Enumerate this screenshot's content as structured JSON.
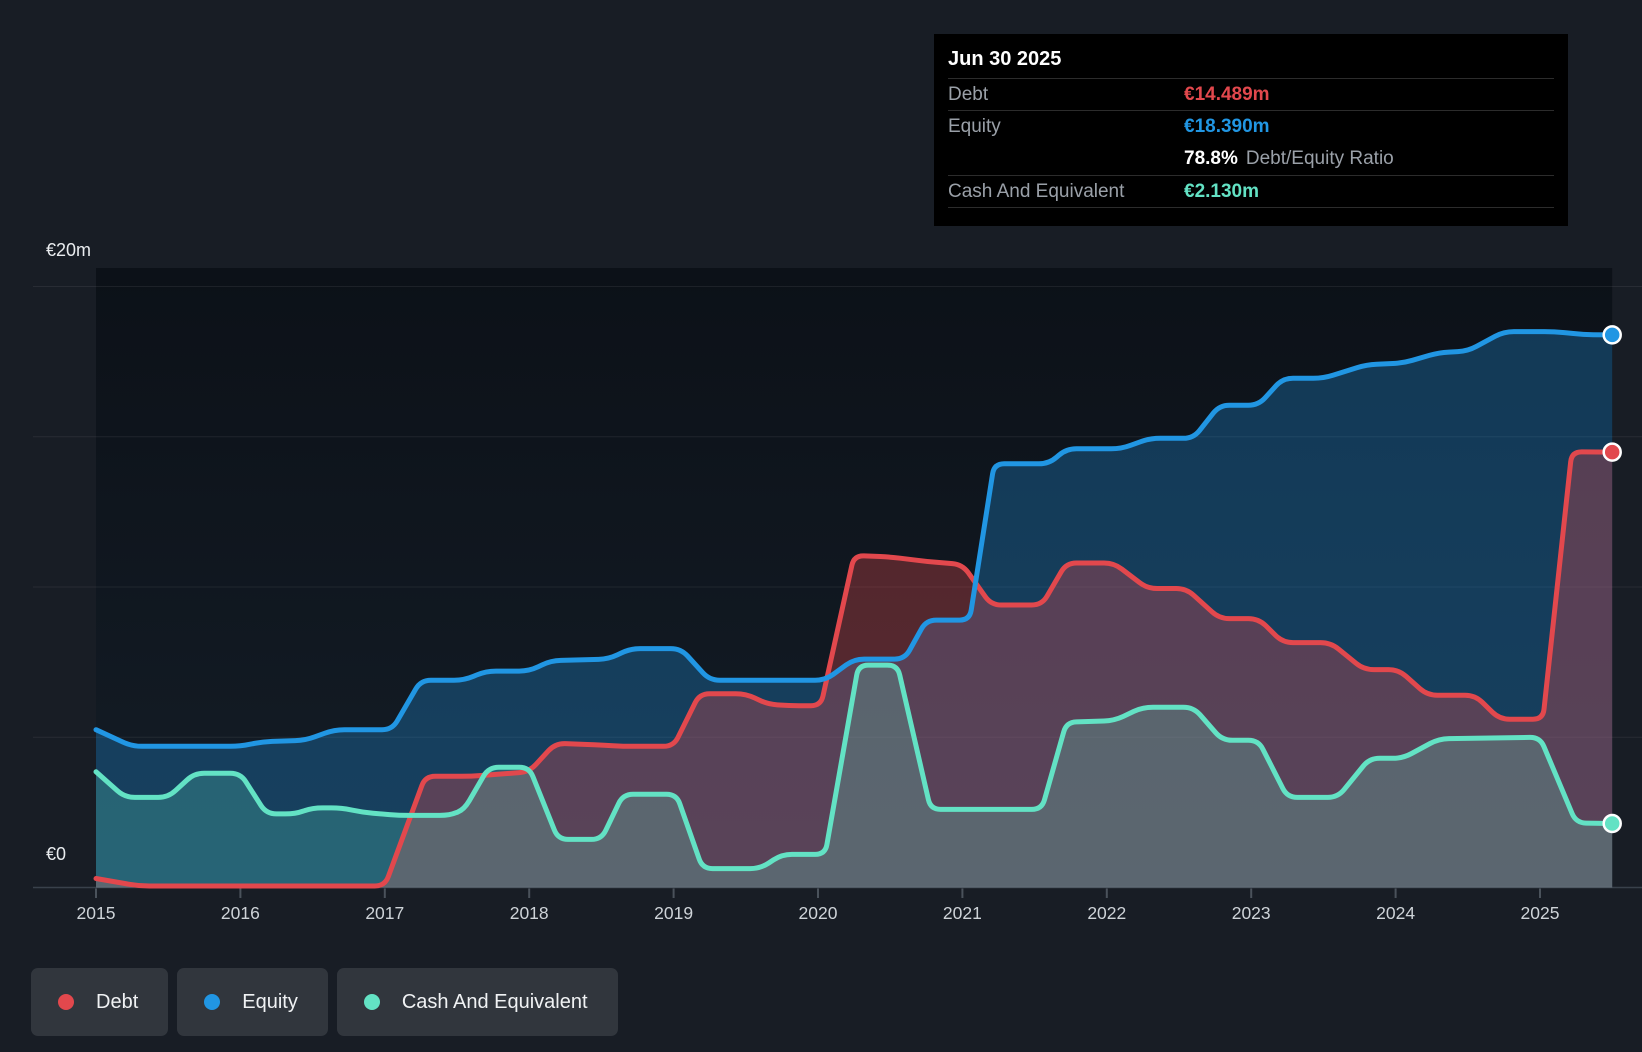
{
  "header_tooltip": {
    "date": "Jun 30 2025",
    "rows": [
      {
        "label": "Debt",
        "value": "€14.489m",
        "key": "debt"
      },
      {
        "label": "Equity",
        "value": "€18.390m",
        "key": "equity"
      },
      {
        "label": "Cash And Equivalent",
        "value": "€2.130m",
        "key": "cash"
      }
    ],
    "ratio_value": "78.8%",
    "ratio_label": "Debt/Equity Ratio"
  },
  "y_axis": {
    "top_label": "€20m",
    "zero_label": "€0"
  },
  "legend": {
    "items": [
      {
        "label": "Debt",
        "key": "debt"
      },
      {
        "label": "Equity",
        "key": "equity"
      },
      {
        "label": "Cash And Equivalent",
        "key": "cash"
      }
    ]
  },
  "colors": {
    "debt": "#e2484d",
    "equity": "#2196e3",
    "cash": "#63e2c4",
    "background": "#181d25",
    "tooltip_bg": "#000000",
    "grid": "rgba(255,255,255,0.07)",
    "axis_line": "#39414b",
    "tick": "#4a525b",
    "axis_text": "#ced3d8"
  },
  "chart_data": {
    "type": "area",
    "x_unit": "decimal_year",
    "x_range": [
      2015,
      2025.5
    ],
    "ylim": [
      0,
      20
    ],
    "y_gridline_values": [
      20,
      15,
      10,
      5
    ],
    "x_tick_years": [
      "2015",
      "2016",
      "2017",
      "2018",
      "2019",
      "2020",
      "2021",
      "2022",
      "2023",
      "2024",
      "2025"
    ],
    "grid_on": true,
    "legend_position": "bottom-left",
    "series": [
      {
        "name": "Debt",
        "key": "debt",
        "fill_alpha": 0.33,
        "points": [
          [
            2015.0,
            0.3
          ],
          [
            2015.3,
            0.05
          ],
          [
            2017.0,
            0.05
          ],
          [
            2017.28,
            3.7
          ],
          [
            2017.6,
            3.7
          ],
          [
            2018.0,
            3.85
          ],
          [
            2018.18,
            4.8
          ],
          [
            2018.45,
            4.75
          ],
          [
            2018.65,
            4.7
          ],
          [
            2019.0,
            4.7
          ],
          [
            2019.18,
            6.45
          ],
          [
            2019.5,
            6.45
          ],
          [
            2019.65,
            6.1
          ],
          [
            2019.8,
            6.05
          ],
          [
            2020.02,
            6.05
          ],
          [
            2020.25,
            11.05
          ],
          [
            2020.5,
            11.0
          ],
          [
            2020.75,
            10.85
          ],
          [
            2021.0,
            10.75
          ],
          [
            2021.2,
            9.4
          ],
          [
            2021.55,
            9.4
          ],
          [
            2021.72,
            10.8
          ],
          [
            2022.05,
            10.8
          ],
          [
            2022.28,
            9.95
          ],
          [
            2022.55,
            9.95
          ],
          [
            2022.78,
            8.95
          ],
          [
            2023.05,
            8.95
          ],
          [
            2023.22,
            8.15
          ],
          [
            2023.55,
            8.15
          ],
          [
            2023.78,
            7.25
          ],
          [
            2024.02,
            7.25
          ],
          [
            2024.22,
            6.4
          ],
          [
            2024.55,
            6.4
          ],
          [
            2024.72,
            5.6
          ],
          [
            2025.02,
            5.6
          ],
          [
            2025.22,
            14.5
          ],
          [
            2025.5,
            14.489
          ]
        ]
      },
      {
        "name": "Equity",
        "key": "equity",
        "fill_alpha": 0.3,
        "points": [
          [
            2015.0,
            5.25
          ],
          [
            2015.25,
            4.7
          ],
          [
            2016.0,
            4.7
          ],
          [
            2016.15,
            4.85
          ],
          [
            2016.45,
            4.9
          ],
          [
            2016.65,
            5.25
          ],
          [
            2017.05,
            5.25
          ],
          [
            2017.25,
            6.9
          ],
          [
            2017.55,
            6.9
          ],
          [
            2017.7,
            7.2
          ],
          [
            2018.0,
            7.2
          ],
          [
            2018.15,
            7.55
          ],
          [
            2018.55,
            7.6
          ],
          [
            2018.7,
            7.95
          ],
          [
            2019.05,
            7.95
          ],
          [
            2019.25,
            6.9
          ],
          [
            2020.05,
            6.9
          ],
          [
            2020.25,
            7.6
          ],
          [
            2020.6,
            7.6
          ],
          [
            2020.75,
            8.9
          ],
          [
            2021.05,
            8.9
          ],
          [
            2021.22,
            14.1
          ],
          [
            2021.6,
            14.1
          ],
          [
            2021.72,
            14.6
          ],
          [
            2022.1,
            14.6
          ],
          [
            2022.3,
            14.95
          ],
          [
            2022.6,
            14.95
          ],
          [
            2022.78,
            16.05
          ],
          [
            2023.05,
            16.05
          ],
          [
            2023.22,
            16.95
          ],
          [
            2023.5,
            16.95
          ],
          [
            2023.8,
            17.4
          ],
          [
            2024.05,
            17.45
          ],
          [
            2024.3,
            17.8
          ],
          [
            2024.5,
            17.85
          ],
          [
            2024.75,
            18.5
          ],
          [
            2025.1,
            18.5
          ],
          [
            2025.3,
            18.4
          ],
          [
            2025.5,
            18.39
          ]
        ]
      },
      {
        "name": "Cash And Equivalent",
        "key": "cash",
        "fill_alpha": 0.22,
        "points": [
          [
            2015.0,
            3.85
          ],
          [
            2015.2,
            3.0
          ],
          [
            2015.5,
            3.0
          ],
          [
            2015.68,
            3.8
          ],
          [
            2016.0,
            3.8
          ],
          [
            2016.18,
            2.45
          ],
          [
            2016.38,
            2.45
          ],
          [
            2016.5,
            2.65
          ],
          [
            2016.7,
            2.65
          ],
          [
            2016.85,
            2.5
          ],
          [
            2017.1,
            2.4
          ],
          [
            2017.45,
            2.4
          ],
          [
            2017.55,
            2.6
          ],
          [
            2017.72,
            4.0
          ],
          [
            2018.0,
            4.0
          ],
          [
            2018.2,
            1.6
          ],
          [
            2018.5,
            1.6
          ],
          [
            2018.65,
            3.1
          ],
          [
            2019.02,
            3.1
          ],
          [
            2019.2,
            0.63
          ],
          [
            2019.6,
            0.63
          ],
          [
            2019.75,
            1.1
          ],
          [
            2020.05,
            1.1
          ],
          [
            2020.28,
            7.4
          ],
          [
            2020.55,
            7.4
          ],
          [
            2020.78,
            2.6
          ],
          [
            2021.55,
            2.6
          ],
          [
            2021.72,
            5.5
          ],
          [
            2022.05,
            5.55
          ],
          [
            2022.25,
            6.0
          ],
          [
            2022.6,
            6.0
          ],
          [
            2022.8,
            4.9
          ],
          [
            2023.05,
            4.9
          ],
          [
            2023.25,
            3.0
          ],
          [
            2023.6,
            3.0
          ],
          [
            2023.82,
            4.3
          ],
          [
            2024.05,
            4.3
          ],
          [
            2024.3,
            4.95
          ],
          [
            2025.0,
            5.0
          ],
          [
            2025.25,
            2.15
          ],
          [
            2025.5,
            2.13
          ]
        ]
      }
    ]
  }
}
